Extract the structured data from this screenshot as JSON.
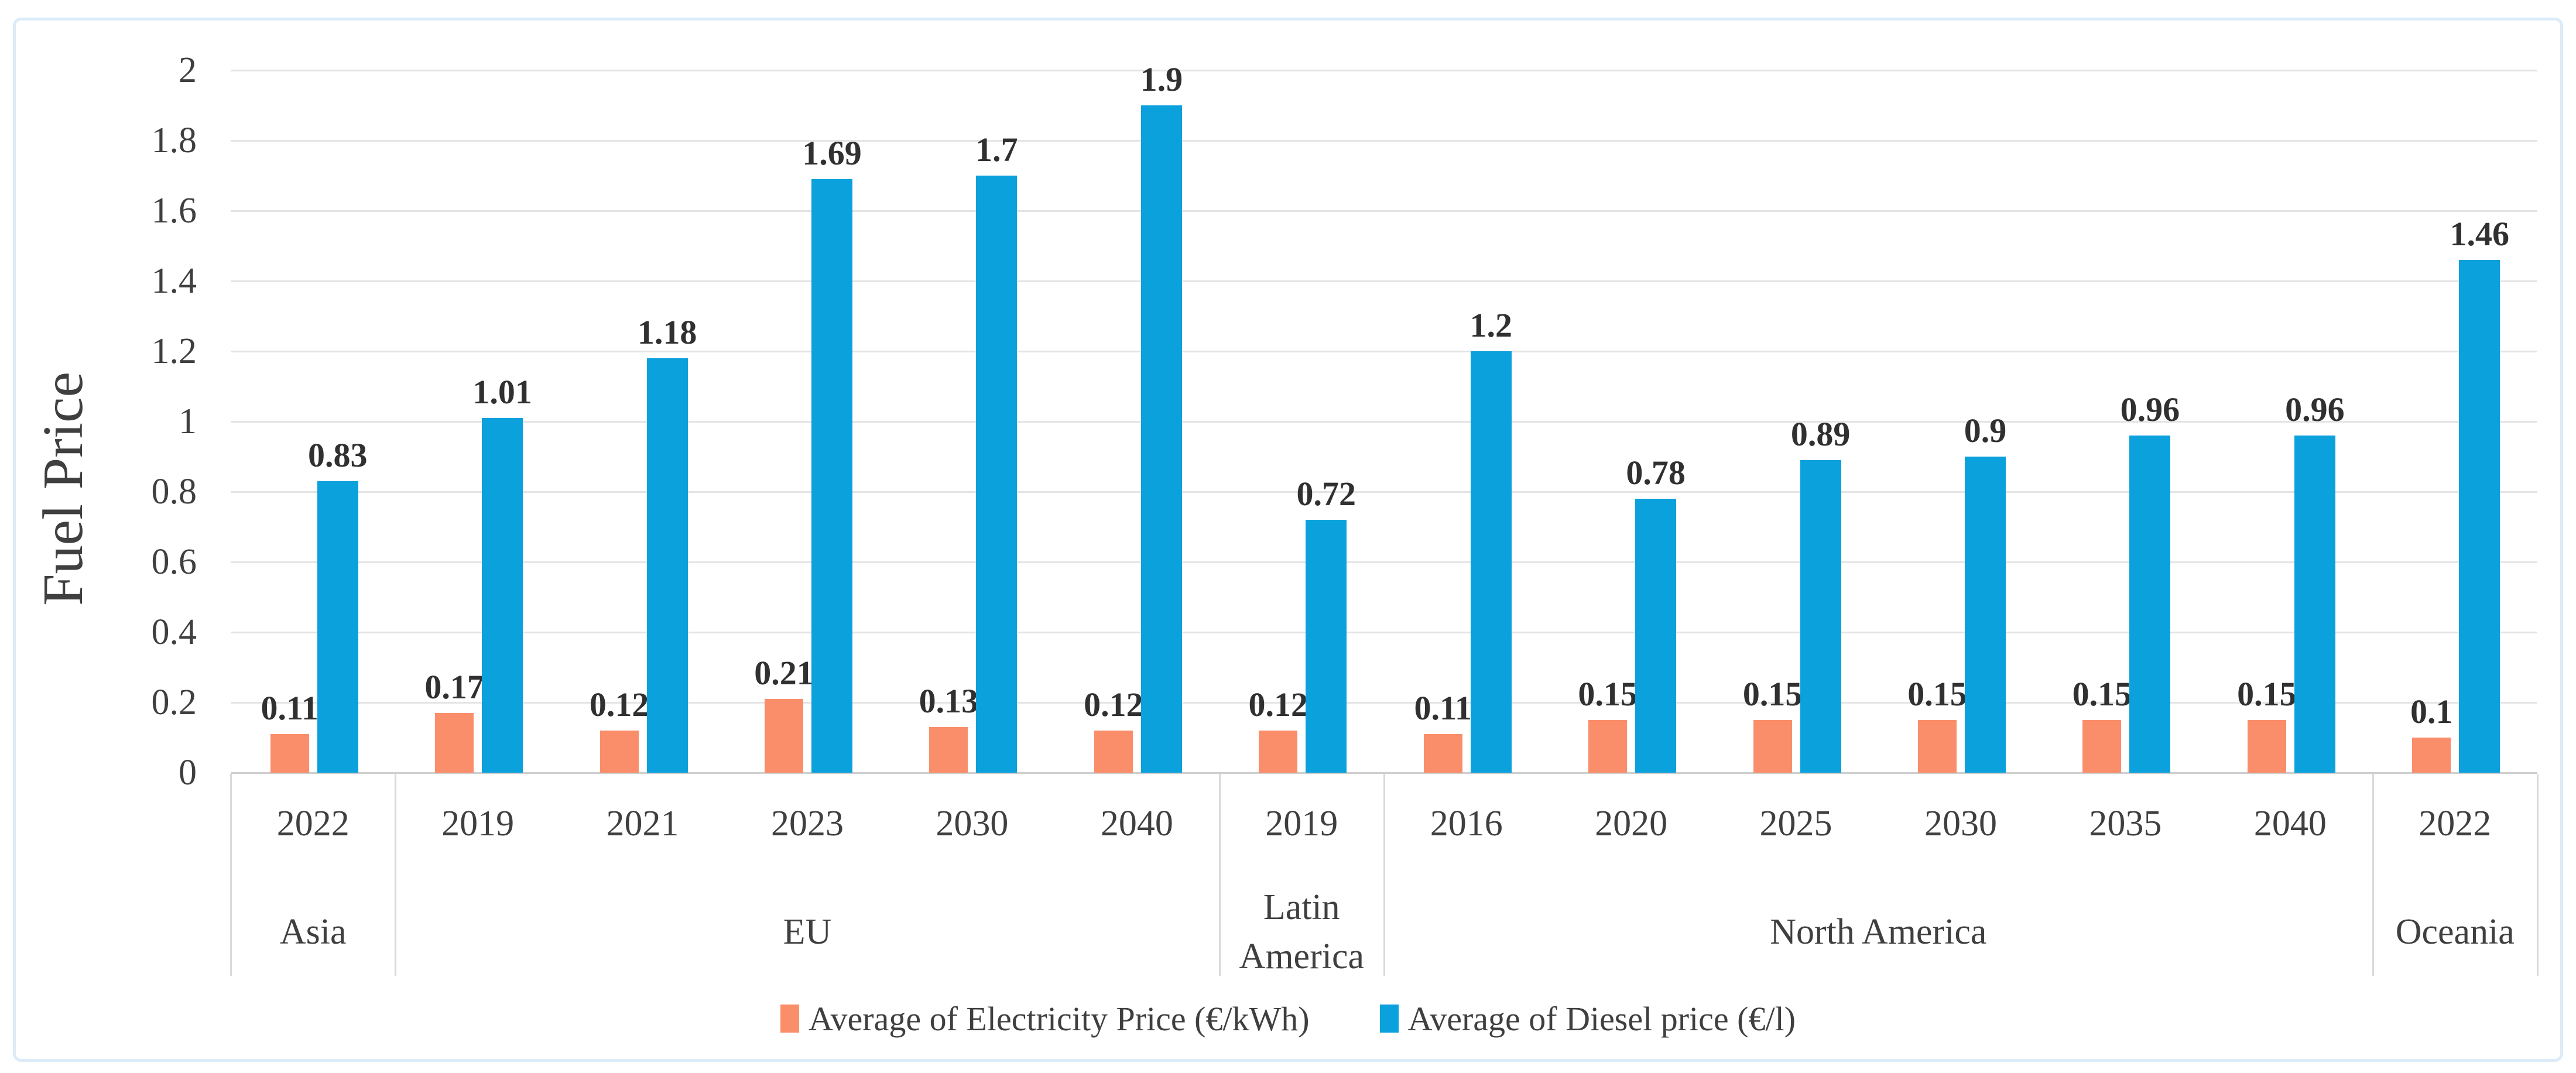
{
  "chart_data": {
    "type": "bar",
    "title": "",
    "ylabel": "Fuel Price",
    "xlabel": "",
    "ylim": [
      0,
      2
    ],
    "ytick_labels": [
      "0",
      "0.2",
      "0.4",
      "0.6",
      "0.8",
      "1",
      "1.2",
      "1.4",
      "1.6",
      "1.8",
      "2"
    ],
    "grid": true,
    "legend_position": "bottom",
    "series": [
      {
        "name": "Average of Electricity Price (€/kWh)",
        "color": "#FA8E6B"
      },
      {
        "name": "Average of Diesel price (€/l)",
        "color": "#0BA1DC"
      }
    ],
    "groups": [
      {
        "region": "Asia",
        "years": [
          "2022"
        ],
        "electricity": [
          0.11
        ],
        "diesel": [
          0.83
        ]
      },
      {
        "region": "EU",
        "years": [
          "2019",
          "2021",
          "2023",
          "2030",
          "2040"
        ],
        "electricity": [
          0.17,
          0.12,
          0.21,
          0.13,
          0.12
        ],
        "diesel": [
          1.01,
          1.18,
          1.69,
          1.7,
          1.9
        ]
      },
      {
        "region": "Latin America",
        "years": [
          "2019"
        ],
        "electricity": [
          0.12
        ],
        "diesel": [
          0.72
        ]
      },
      {
        "region": "North America",
        "years": [
          "2016",
          "2020",
          "2025",
          "2030",
          "2035",
          "2040"
        ],
        "electricity": [
          0.11,
          0.15,
          0.15,
          0.15,
          0.15,
          0.15
        ],
        "diesel": [
          1.2,
          0.78,
          0.89,
          0.9,
          0.96,
          0.96
        ]
      },
      {
        "region": "Oceania",
        "years": [
          "2022"
        ],
        "electricity": [
          0.1
        ],
        "diesel": [
          1.46
        ]
      }
    ],
    "colors": {
      "gridline": "#e4e4e4",
      "axis_line": "#cfcfcf",
      "separator": "#d9d9d9",
      "text": "#3f3f3f",
      "panel_border": "#dcebf8"
    }
  }
}
